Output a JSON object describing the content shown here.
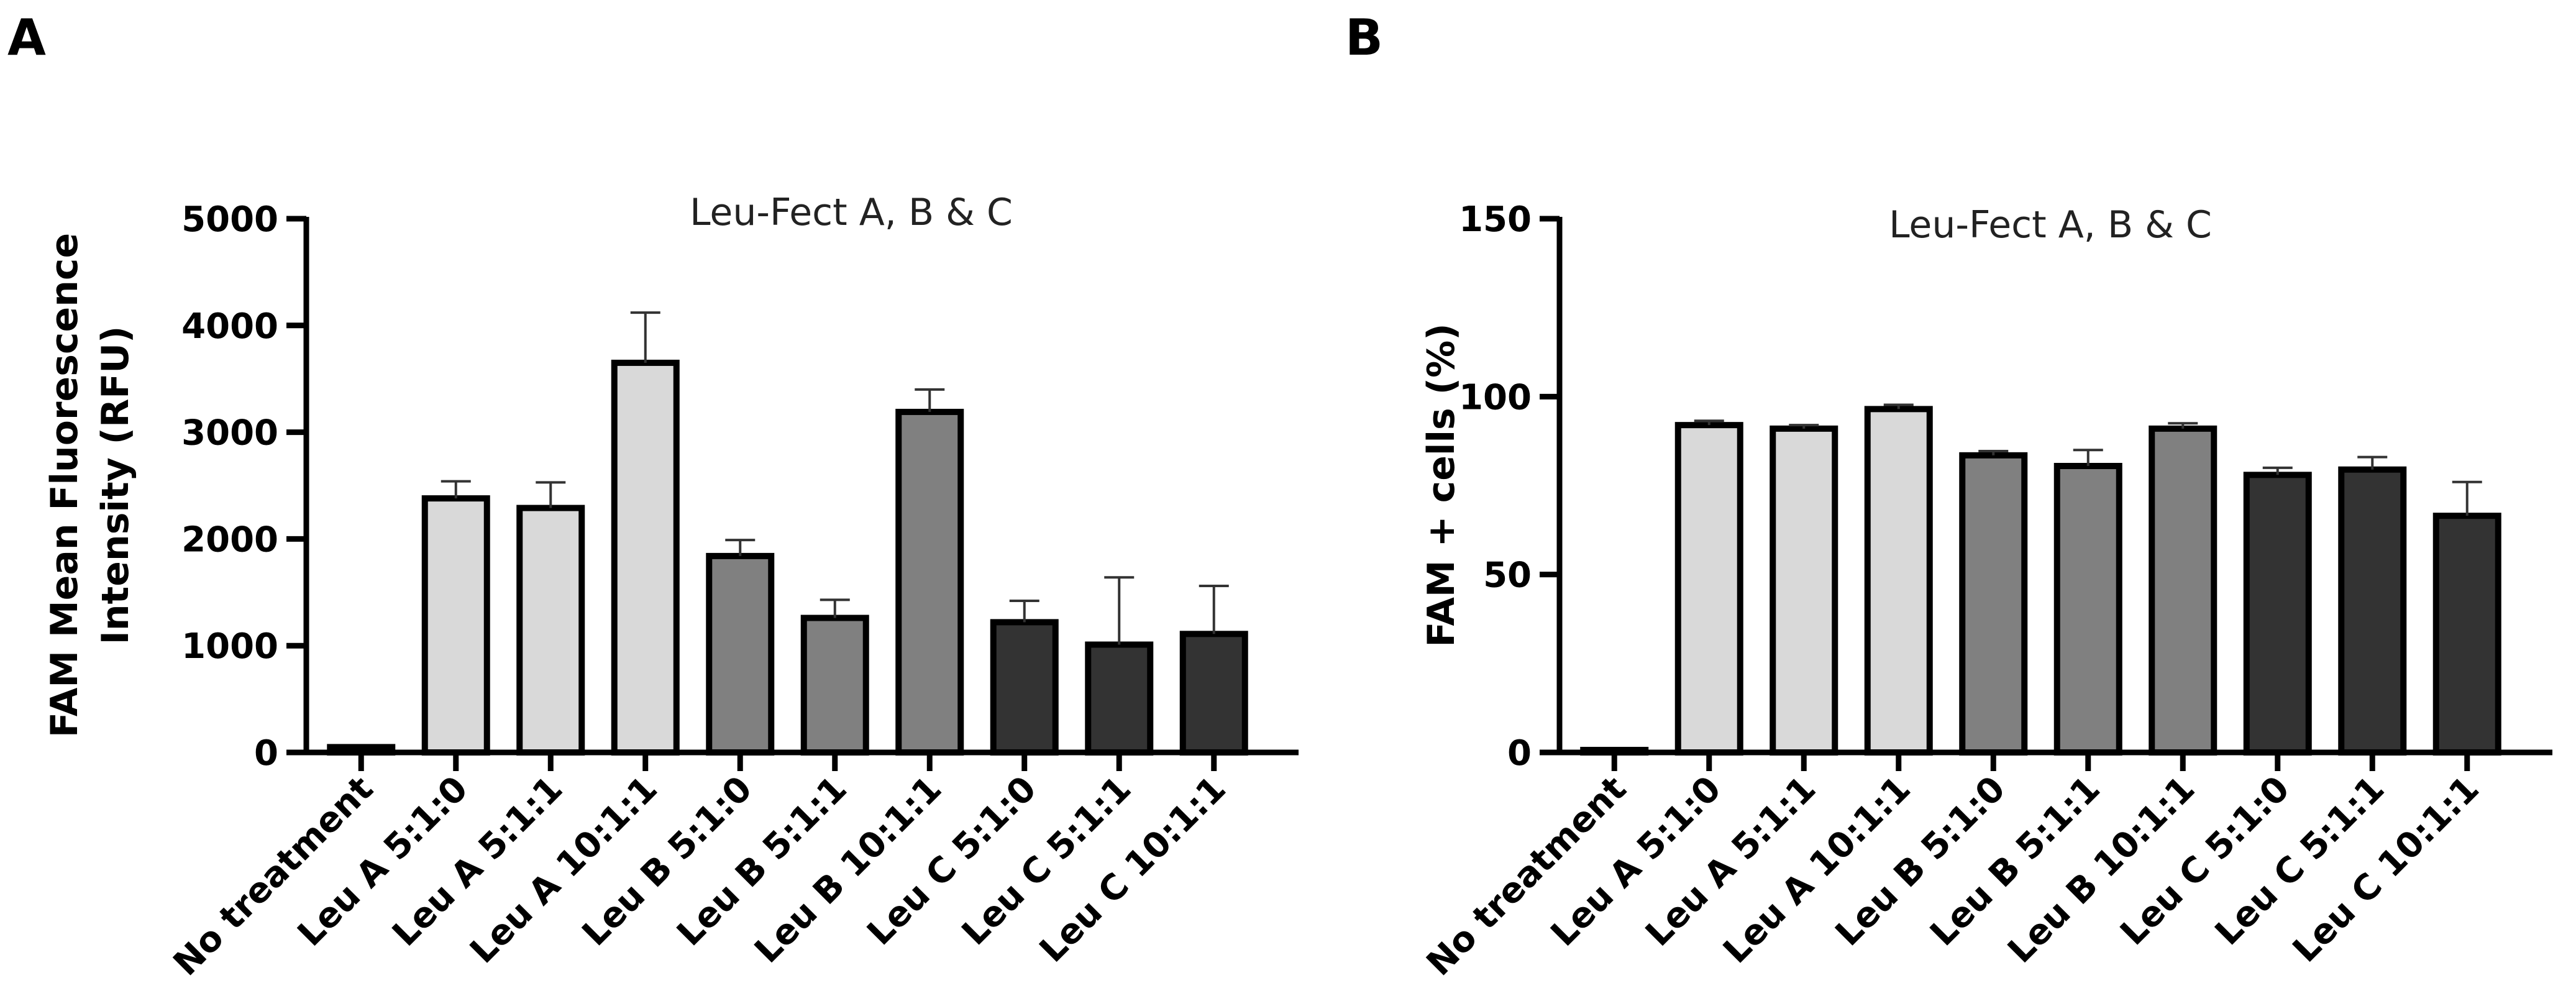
{
  "panels": [
    "A",
    "B"
  ],
  "chart_data": [
    {
      "type": "bar",
      "panel": "A",
      "title": "Leu-Fect A, B & C",
      "xlabel": "",
      "ylabel": "FAM Mean Fluorescence Intensity (RFU)",
      "ylabel_lines": [
        "FAM Mean Fluorescence",
        "Intensity (RFU)"
      ],
      "ylim": [
        0,
        5000
      ],
      "yticks": [
        0,
        1000,
        2000,
        3000,
        4000,
        5000
      ],
      "categories": [
        "No treatment",
        "Leu A 5:1:0",
        "Leu A 5:1:1",
        "Leu A 10:1:1",
        "Leu B 5:1:0",
        "Leu B 5:1:1",
        "Leu B 10:1:1",
        "Leu C 5:1:0",
        "Leu C 5:1:1",
        "Leu C 10:1:1"
      ],
      "values": [
        50,
        2380,
        2290,
        3650,
        1840,
        1260,
        3190,
        1220,
        1010,
        1110
      ],
      "errors": [
        0,
        160,
        240,
        470,
        150,
        170,
        210,
        200,
        630,
        450
      ],
      "colors": [
        "#d9d9d9",
        "#d9d9d9",
        "#d9d9d9",
        "#d9d9d9",
        "#808080",
        "#808080",
        "#808080",
        "#333333",
        "#333333",
        "#333333"
      ],
      "grid": false
    },
    {
      "type": "bar",
      "panel": "B",
      "title": "Leu-Fect A, B & C",
      "xlabel": "",
      "ylabel": "FAM + cells (%)",
      "ylabel_lines": [
        "FAM + cells (%)"
      ],
      "ylim": [
        0,
        150
      ],
      "yticks": [
        0,
        50,
        100,
        150
      ],
      "categories": [
        "No treatment",
        "Leu A 5:1:0",
        "Leu A 5:1:1",
        "Leu A 10:1:1",
        "Leu B 5:1:0",
        "Leu B 5:1:1",
        "Leu B 10:1:1",
        "Leu C 5:1:0",
        "Leu C 5:1:1",
        "Leu C 10:1:1"
      ],
      "values": [
        0.5,
        92,
        91,
        96.5,
        83.5,
        80.5,
        91,
        78,
        79.5,
        66.5
      ],
      "errors": [
        0,
        1.2,
        1,
        1.2,
        1.2,
        4.5,
        1.5,
        2,
        3.5,
        9.5
      ],
      "colors": [
        "#d9d9d9",
        "#d9d9d9",
        "#d9d9d9",
        "#d9d9d9",
        "#808080",
        "#808080",
        "#808080",
        "#333333",
        "#333333",
        "#333333"
      ],
      "grid": false
    }
  ]
}
